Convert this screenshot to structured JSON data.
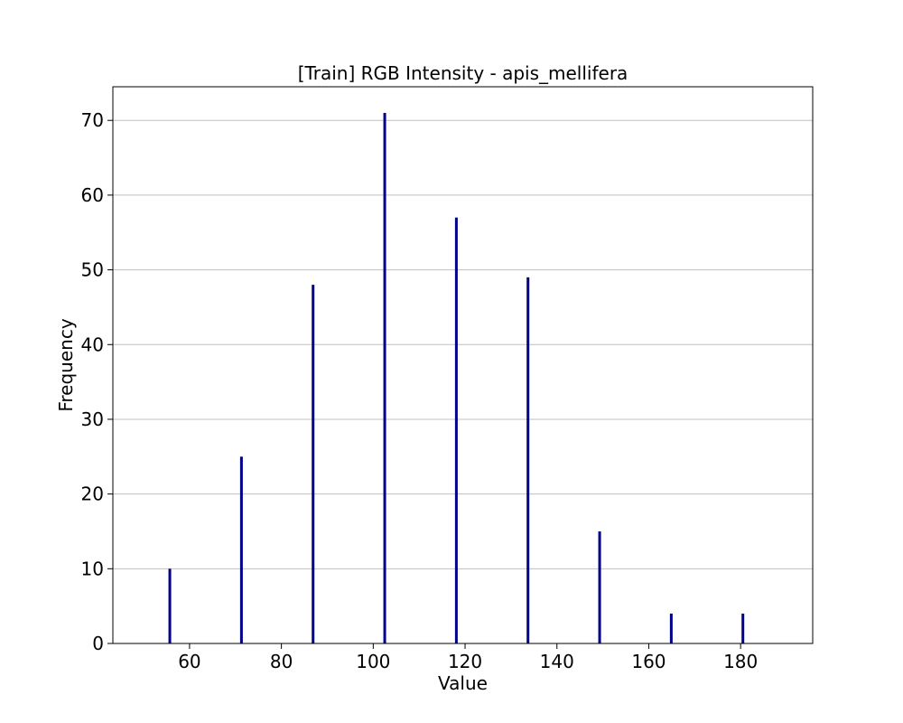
{
  "chart_data": {
    "type": "bar",
    "title": "[Train] RGB Intensity - apis_mellifera",
    "xlabel": "Value",
    "ylabel": "Frequency",
    "x": [
      55.7,
      71.3,
      86.9,
      102.5,
      118.1,
      133.7,
      149.3,
      164.9,
      180.5
    ],
    "values": [
      10,
      25,
      48,
      71,
      57,
      49,
      15,
      4,
      4
    ],
    "xlim": [
      43.3,
      195.7
    ],
    "ylim": [
      0,
      74.5
    ],
    "xticks": [
      60,
      80,
      100,
      120,
      140,
      160,
      180
    ],
    "yticks": [
      0,
      10,
      20,
      30,
      40,
      50,
      60,
      70
    ],
    "grid": "y",
    "bar_color": "#00008b"
  }
}
